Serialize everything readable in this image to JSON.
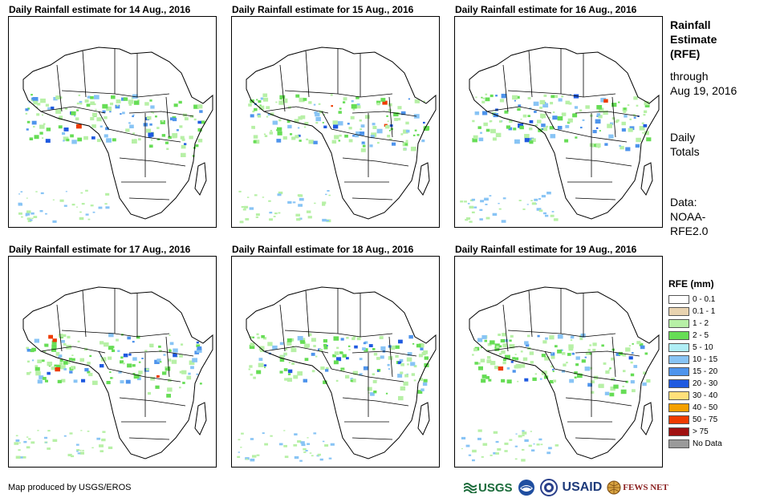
{
  "panels": [
    {
      "title": "Daily Rainfall estimate for 14 Aug., 2016"
    },
    {
      "title": "Daily Rainfall estimate for 15 Aug., 2016"
    },
    {
      "title": "Daily Rainfall estimate for 16 Aug., 2016"
    },
    {
      "title": "Daily Rainfall estimate for 17 Aug., 2016"
    },
    {
      "title": "Daily Rainfall estimate for 18 Aug., 2016"
    },
    {
      "title": "Daily Rainfall estimate for 19 Aug., 2016"
    }
  ],
  "side": {
    "title_lines": [
      "Rainfall",
      "Estimate",
      "(RFE)"
    ],
    "through_lines": [
      "through",
      "Aug 19, 2016"
    ],
    "daily_lines": [
      "Daily",
      "Totals"
    ],
    "data_lines": [
      "Data:",
      "NOAA-",
      "RFE2.0"
    ]
  },
  "legend": {
    "title": "RFE (mm)",
    "items": [
      {
        "label": "0 - 0.1",
        "color": "#ffffff"
      },
      {
        "label": "0.1 - 1",
        "color": "#e8d3b0"
      },
      {
        "label": "1 - 2",
        "color": "#b7f0a6"
      },
      {
        "label": "2 - 5",
        "color": "#66dd55"
      },
      {
        "label": "5 - 10",
        "color": "#b0eef6"
      },
      {
        "label": "10 - 15",
        "color": "#88c4f5"
      },
      {
        "label": "15 - 20",
        "color": "#4e94ec"
      },
      {
        "label": "20 - 30",
        "color": "#1f5ae0"
      },
      {
        "label": "30 - 40",
        "color": "#ffe07a"
      },
      {
        "label": "40 - 50",
        "color": "#f5a000"
      },
      {
        "label": "50 - 75",
        "color": "#ee3b00"
      },
      {
        "label": "> 75",
        "color": "#a01010"
      },
      {
        "label": "No Data",
        "color": "#9a9a9a"
      }
    ]
  },
  "footer": {
    "credit": "Map produced by USGS/EROS"
  },
  "logos": {
    "usgs": "USGS",
    "usaid": "USAID",
    "fews": "FEWS NET"
  }
}
